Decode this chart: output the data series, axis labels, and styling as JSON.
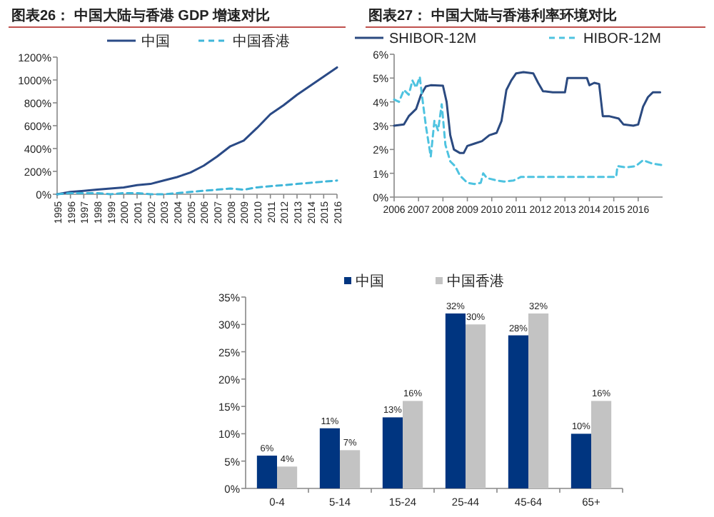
{
  "chart_data": [
    {
      "type": "line",
      "title": "图表26： 中国大陆与香港 GDP 增速对比",
      "categories": [
        "1995",
        "1996",
        "1997",
        "1998",
        "1999",
        "2000",
        "2001",
        "2002",
        "2003",
        "2004",
        "2005",
        "2006",
        "2007",
        "2008",
        "2009",
        "2010",
        "2011",
        "2012",
        "2013",
        "2014",
        "2015",
        "2016"
      ],
      "series": [
        {
          "name": "中国",
          "color": "#2a4a86",
          "line_style": "solid",
          "values": [
            0,
            20,
            30,
            40,
            50,
            60,
            80,
            90,
            120,
            150,
            190,
            250,
            330,
            420,
            470,
            580,
            700,
            780,
            870,
            950,
            1030,
            1110
          ]
        },
        {
          "name": "中国香港",
          "color": "#3fb6d9",
          "line_style": "dashed",
          "values": [
            0,
            10,
            10,
            10,
            0,
            10,
            10,
            0,
            0,
            10,
            20,
            30,
            40,
            50,
            40,
            60,
            70,
            80,
            90,
            100,
            110,
            120
          ]
        }
      ],
      "ylim": [
        0,
        1200
      ],
      "yticks": [
        {
          "value": 0,
          "label": "0%"
        },
        {
          "value": 200,
          "label": "200%"
        },
        {
          "value": 400,
          "label": "400%"
        },
        {
          "value": 600,
          "label": "600%"
        },
        {
          "value": 800,
          "label": "800%"
        },
        {
          "value": 1000,
          "label": "1000%"
        },
        {
          "value": 1200,
          "label": "1200%"
        }
      ],
      "legend": "top",
      "grid": false
    },
    {
      "type": "line",
      "title": "图表27： 中国大陆与香港利率环境对比",
      "series": [
        {
          "name": "SHIBOR-12M",
          "color": "#2b4a80",
          "line_style": "solid",
          "x": [
            2006.0,
            2006.4,
            2006.6,
            2006.9,
            2007.1,
            2007.3,
            2007.5,
            2008.0,
            2008.15,
            2008.3,
            2008.45,
            2008.7,
            2008.85,
            2009.0,
            2009.3,
            2009.6,
            2009.9,
            2010.2,
            2010.4,
            2010.6,
            2010.8,
            2011.0,
            2011.3,
            2011.7,
            2011.9,
            2012.1,
            2012.5,
            2013.0,
            2013.1,
            2013.6,
            2013.9,
            2014.0,
            2014.2,
            2014.4,
            2014.55,
            2014.8,
            2015.2,
            2015.4,
            2015.8,
            2016.0,
            2016.2,
            2016.4,
            2016.6,
            2016.9
          ],
          "values": [
            3.0,
            3.05,
            3.4,
            3.7,
            4.3,
            4.65,
            4.7,
            4.68,
            4.0,
            2.6,
            2.0,
            1.85,
            1.85,
            2.15,
            2.25,
            2.35,
            2.6,
            2.7,
            3.2,
            4.5,
            4.9,
            5.2,
            5.25,
            5.2,
            4.8,
            4.45,
            4.4,
            4.4,
            5.0,
            5.0,
            5.0,
            4.7,
            4.8,
            4.75,
            3.4,
            3.4,
            3.3,
            3.05,
            3.0,
            3.05,
            3.8,
            4.2,
            4.4,
            4.4
          ]
        },
        {
          "name": "HIBOR-12M",
          "color": "#4ec3e0",
          "line_style": "dashed",
          "x": [
            2006.0,
            2006.2,
            2006.4,
            2006.6,
            2006.75,
            2006.9,
            2007.05,
            2007.15,
            2007.3,
            2007.5,
            2007.65,
            2007.8,
            2007.95,
            2008.1,
            2008.3,
            2008.5,
            2008.7,
            2009.0,
            2009.3,
            2009.55,
            2009.65,
            2009.8,
            2010.2,
            2010.5,
            2010.9,
            2011.2,
            2012.0,
            2013.0,
            2014.0,
            2015.1,
            2015.15,
            2015.5,
            2015.9,
            2016.2,
            2016.6,
            2016.95
          ],
          "values": [
            4.1,
            4.0,
            4.5,
            4.3,
            4.9,
            4.6,
            5.05,
            4.2,
            3.0,
            1.7,
            3.2,
            2.8,
            3.9,
            2.2,
            1.5,
            1.3,
            0.9,
            0.6,
            0.55,
            0.6,
            1.0,
            0.8,
            0.7,
            0.65,
            0.7,
            0.85,
            0.85,
            0.85,
            0.85,
            0.85,
            1.3,
            1.25,
            1.3,
            1.55,
            1.4,
            1.35
          ]
        }
      ],
      "xlim": [
        2006,
        2017
      ],
      "xticks": [
        2006,
        2007,
        2008,
        2009,
        2010,
        2011,
        2012,
        2013,
        2014,
        2015,
        2016
      ],
      "ylim": [
        0,
        6
      ],
      "yticks": [
        {
          "value": 0,
          "label": "0%"
        },
        {
          "value": 1,
          "label": "1%"
        },
        {
          "value": 2,
          "label": "2%"
        },
        {
          "value": 3,
          "label": "3%"
        },
        {
          "value": 4,
          "label": "4%"
        },
        {
          "value": 5,
          "label": "5%"
        },
        {
          "value": 6,
          "label": "6%"
        }
      ],
      "legend": "top",
      "grid": false
    },
    {
      "type": "bar",
      "categories": [
        "0-4",
        "5-14",
        "15-24",
        "25-44",
        "45-64",
        "65+"
      ],
      "series": [
        {
          "name": "中国",
          "color": "#003580",
          "values": [
            6,
            11,
            13,
            32,
            28,
            10
          ],
          "value_labels": [
            "6%",
            "11%",
            "13%",
            "32%",
            "28%",
            "10%"
          ]
        },
        {
          "name": "中国香港",
          "color": "#c3c3c3",
          "values": [
            4,
            7,
            16,
            30,
            32,
            16
          ],
          "value_labels": [
            "4%",
            "7%",
            "16%",
            "30%",
            "32%",
            "16%"
          ]
        }
      ],
      "ylim": [
        0,
        35
      ],
      "yticks": [
        {
          "value": 0,
          "label": "0%"
        },
        {
          "value": 5,
          "label": "5%"
        },
        {
          "value": 10,
          "label": "10%"
        },
        {
          "value": 15,
          "label": "15%"
        },
        {
          "value": 20,
          "label": "20%"
        },
        {
          "value": 25,
          "label": "25%"
        },
        {
          "value": 30,
          "label": "30%"
        },
        {
          "value": 35,
          "label": "35%"
        }
      ],
      "legend": "top",
      "grid": false
    }
  ]
}
